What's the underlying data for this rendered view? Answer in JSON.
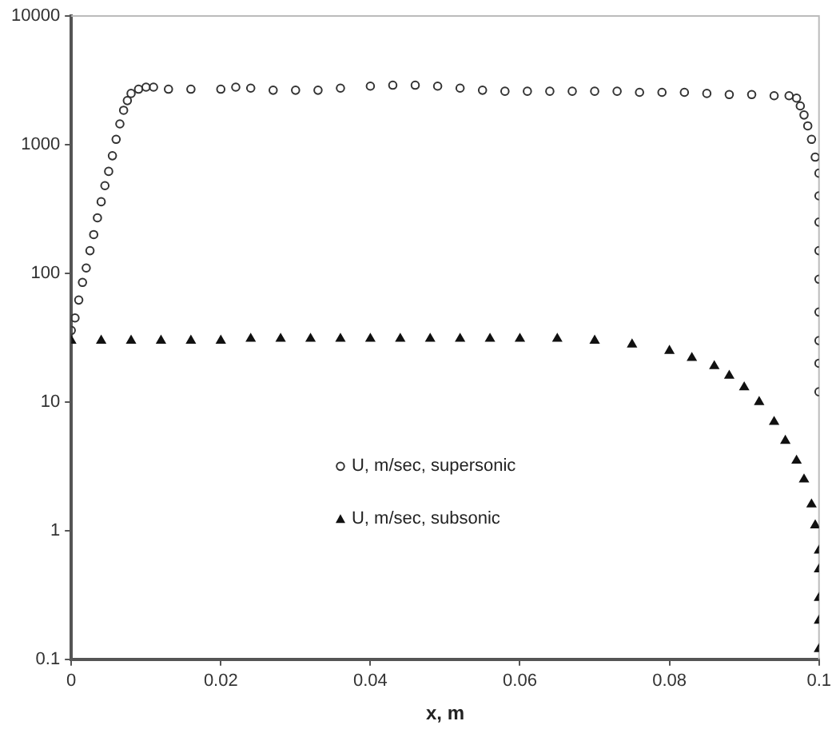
{
  "chart_data": {
    "type": "scatter",
    "xlabel": "x, m",
    "log": "y",
    "xlim": [
      0,
      0.1
    ],
    "xticks": [
      0,
      0.02,
      0.04,
      0.06,
      0.08,
      0.1
    ],
    "ylim": [
      0.1,
      10000
    ],
    "yticks": [
      0.1,
      1,
      10,
      100,
      1000,
      10000
    ],
    "grid": false,
    "legend": "center",
    "series": [
      {
        "name": "U, m/sec, supersonic",
        "color": "#333333",
        "marker": "circle",
        "x": [
          0,
          0.0005,
          0.001,
          0.0015,
          0.002,
          0.0025,
          0.003,
          0.0035,
          0.004,
          0.0045,
          0.005,
          0.0055,
          0.006,
          0.0065,
          0.007,
          0.0075,
          0.008,
          0.009,
          0.01,
          0.011,
          0.013,
          0.016,
          0.02,
          0.022,
          0.024,
          0.027,
          0.03,
          0.033,
          0.036,
          0.04,
          0.043,
          0.046,
          0.049,
          0.052,
          0.055,
          0.058,
          0.061,
          0.064,
          0.067,
          0.07,
          0.073,
          0.076,
          0.079,
          0.082,
          0.085,
          0.088,
          0.091,
          0.094,
          0.096,
          0.097,
          0.0975,
          0.098,
          0.0985,
          0.099,
          0.0995,
          0.1,
          0.1,
          0.1,
          0.1,
          0.1,
          0.1,
          0.1,
          0.1,
          0.1
        ],
        "values": [
          36,
          45,
          62,
          85,
          110,
          150,
          200,
          270,
          360,
          480,
          620,
          820,
          1100,
          1450,
          1850,
          2200,
          2500,
          2700,
          2800,
          2800,
          2700,
          2700,
          2700,
          2800,
          2750,
          2650,
          2650,
          2650,
          2750,
          2850,
          2900,
          2900,
          2850,
          2750,
          2650,
          2600,
          2600,
          2600,
          2600,
          2600,
          2600,
          2550,
          2550,
          2550,
          2500,
          2450,
          2450,
          2400,
          2400,
          2300,
          2000,
          1700,
          1400,
          1100,
          800,
          600,
          400,
          250,
          150,
          90,
          50,
          30,
          20,
          12
        ]
      },
      {
        "name": "U, m/sec, subsonic",
        "color": "#111111",
        "marker": "triangle",
        "x": [
          0,
          0.004,
          0.008,
          0.012,
          0.016,
          0.02,
          0.024,
          0.028,
          0.032,
          0.036,
          0.04,
          0.044,
          0.048,
          0.052,
          0.056,
          0.06,
          0.065,
          0.07,
          0.075,
          0.08,
          0.083,
          0.086,
          0.088,
          0.09,
          0.092,
          0.094,
          0.0955,
          0.097,
          0.098,
          0.099,
          0.0995,
          0.1,
          0.1,
          0.1,
          0.1,
          0.1
        ],
        "values": [
          30,
          30,
          30,
          30,
          30,
          30,
          31,
          31,
          31,
          31,
          31,
          31,
          31,
          31,
          31,
          31,
          31,
          30,
          28,
          25,
          22,
          19,
          16,
          13,
          10,
          7,
          5,
          3.5,
          2.5,
          1.6,
          1.1,
          0.7,
          0.5,
          0.3,
          0.2,
          0.12
        ]
      }
    ]
  }
}
